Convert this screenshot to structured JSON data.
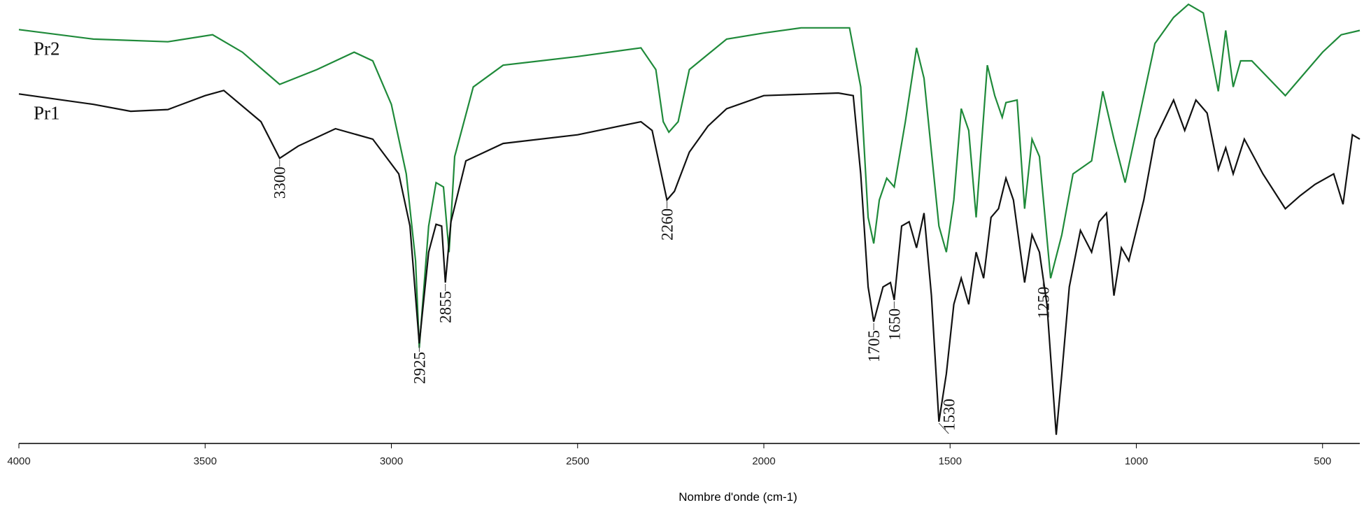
{
  "chart_data": {
    "type": "line",
    "x_label": "Nombre d'onde (cm-1)",
    "xlim": [
      4000,
      400
    ],
    "xticks": [
      4000,
      3500,
      3000,
      2500,
      2000,
      1500,
      1000,
      500
    ],
    "ylim": [
      0,
      510
    ],
    "peaks": [
      3300,
      2925,
      2855,
      2260,
      1705,
      1650,
      1530,
      1250
    ],
    "series": [
      {
        "name": "Pr2",
        "color": "#1f8a3a",
        "x": [
          4000,
          3800,
          3600,
          3480,
          3400,
          3300,
          3200,
          3100,
          3050,
          3000,
          2960,
          2935,
          2925,
          2900,
          2880,
          2860,
          2845,
          2830,
          2780,
          2700,
          2500,
          2330,
          2290,
          2270,
          2255,
          2230,
          2200,
          2100,
          2000,
          1900,
          1770,
          1740,
          1720,
          1705,
          1690,
          1670,
          1650,
          1620,
          1590,
          1570,
          1530,
          1510,
          1490,
          1470,
          1450,
          1430,
          1400,
          1380,
          1360,
          1350,
          1320,
          1300,
          1280,
          1260,
          1230,
          1200,
          1170,
          1120,
          1090,
          1060,
          1030,
          1000,
          950,
          900,
          860,
          820,
          800,
          780,
          760,
          740,
          720,
          690,
          600,
          560,
          500,
          450,
          400
        ],
        "values": [
          476,
          465,
          462,
          470,
          450,
          413,
          430,
          450,
          440,
          390,
          310,
          210,
          110,
          250,
          300,
          295,
          220,
          330,
          410,
          435,
          445,
          455,
          430,
          370,
          358,
          370,
          430,
          465,
          472,
          478,
          478,
          410,
          260,
          230,
          280,
          305,
          295,
          370,
          455,
          420,
          250,
          220,
          280,
          385,
          360,
          260,
          435,
          400,
          375,
          392,
          395,
          270,
          350,
          330,
          190,
          240,
          310,
          325,
          405,
          350,
          300,
          360,
          460,
          490,
          505,
          495,
          450,
          405,
          475,
          410,
          440,
          440,
          400,
          420,
          450,
          470,
          475
        ]
      },
      {
        "name": "Pr1",
        "color": "#111111",
        "x": [
          4000,
          3800,
          3700,
          3600,
          3500,
          3450,
          3350,
          3300,
          3250,
          3150,
          3050,
          2980,
          2950,
          2925,
          2900,
          2880,
          2865,
          2855,
          2840,
          2800,
          2700,
          2500,
          2330,
          2300,
          2270,
          2260,
          2240,
          2200,
          2150,
          2100,
          2000,
          1800,
          1760,
          1740,
          1720,
          1705,
          1680,
          1660,
          1650,
          1630,
          1610,
          1590,
          1570,
          1550,
          1530,
          1510,
          1490,
          1470,
          1450,
          1430,
          1410,
          1390,
          1370,
          1350,
          1330,
          1300,
          1280,
          1260,
          1240,
          1215,
          1200,
          1180,
          1150,
          1120,
          1100,
          1080,
          1060,
          1040,
          1020,
          980,
          950,
          900,
          870,
          840,
          810,
          780,
          760,
          740,
          710,
          660,
          600,
          560,
          520,
          470,
          445,
          420,
          400
        ],
        "values": [
          402,
          390,
          382,
          384,
          400,
          406,
          370,
          328,
          342,
          362,
          350,
          310,
          250,
          115,
          220,
          252,
          250,
          185,
          255,
          325,
          345,
          355,
          370,
          360,
          300,
          280,
          290,
          335,
          365,
          385,
          400,
          403,
          400,
          310,
          180,
          140,
          180,
          185,
          165,
          250,
          255,
          225,
          265,
          170,
          25,
          80,
          160,
          190,
          160,
          220,
          190,
          260,
          270,
          305,
          280,
          185,
          240,
          220,
          160,
          10,
          80,
          180,
          245,
          220,
          255,
          265,
          170,
          225,
          210,
          280,
          350,
          395,
          360,
          395,
          380,
          315,
          340,
          310,
          350,
          310,
          270,
          285,
          298,
          310,
          275,
          355,
          350
        ]
      }
    ]
  }
}
